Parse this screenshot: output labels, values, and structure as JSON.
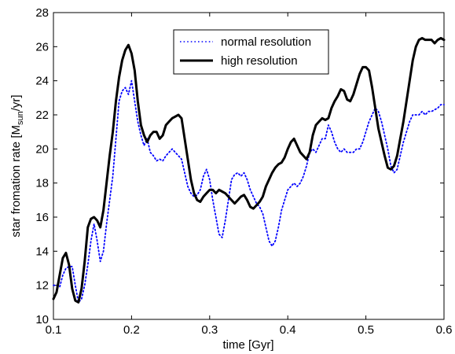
{
  "chart_data": {
    "type": "line",
    "xlabel": "time [Gyr]",
    "ylabel_parts": {
      "main": "star fromation rate [M",
      "sub": "sun",
      "tail": "/yr]"
    },
    "xlim": [
      0.1,
      0.6
    ],
    "ylim": [
      10,
      28
    ],
    "xticks": [
      "0.1",
      "0.2",
      "0.3",
      "0.4",
      "0.5",
      "0.6"
    ],
    "yticks": [
      "10",
      "12",
      "14",
      "16",
      "18",
      "20",
      "22",
      "24",
      "26",
      "28"
    ],
    "grid": false,
    "legend_position": "top-center",
    "series": [
      {
        "name": "normal resolution",
        "style": "dotted",
        "color": "#0000ff",
        "x": [
          0.1,
          0.104,
          0.108,
          0.112,
          0.116,
          0.12,
          0.124,
          0.128,
          0.132,
          0.136,
          0.14,
          0.144,
          0.148,
          0.152,
          0.156,
          0.16,
          0.164,
          0.168,
          0.172,
          0.176,
          0.18,
          0.184,
          0.188,
          0.192,
          0.196,
          0.2,
          0.204,
          0.208,
          0.212,
          0.216,
          0.22,
          0.224,
          0.228,
          0.232,
          0.236,
          0.24,
          0.244,
          0.248,
          0.252,
          0.256,
          0.26,
          0.264,
          0.268,
          0.272,
          0.276,
          0.28,
          0.284,
          0.288,
          0.292,
          0.296,
          0.3,
          0.304,
          0.308,
          0.312,
          0.316,
          0.32,
          0.324,
          0.328,
          0.332,
          0.336,
          0.34,
          0.344,
          0.348,
          0.352,
          0.356,
          0.36,
          0.364,
          0.368,
          0.372,
          0.376,
          0.38,
          0.384,
          0.388,
          0.392,
          0.396,
          0.4,
          0.404,
          0.408,
          0.412,
          0.416,
          0.42,
          0.424,
          0.428,
          0.432,
          0.436,
          0.44,
          0.444,
          0.448,
          0.452,
          0.456,
          0.46,
          0.464,
          0.468,
          0.472,
          0.476,
          0.48,
          0.484,
          0.488,
          0.492,
          0.496,
          0.5,
          0.504,
          0.508,
          0.512,
          0.516,
          0.52,
          0.524,
          0.528,
          0.532,
          0.536,
          0.54,
          0.544,
          0.548,
          0.552,
          0.556,
          0.56,
          0.564,
          0.568,
          0.572,
          0.576,
          0.58,
          0.584,
          0.588,
          0.592,
          0.596,
          0.6
        ],
        "y": [
          12.0,
          12.0,
          11.9,
          12.6,
          13.0,
          13.1,
          13.1,
          12.0,
          11.0,
          11.2,
          12.0,
          13.2,
          14.6,
          15.6,
          14.6,
          13.4,
          14.0,
          15.6,
          17.0,
          18.4,
          20.6,
          22.8,
          23.4,
          23.6,
          23.2,
          24.0,
          22.8,
          21.6,
          20.8,
          20.2,
          20.6,
          19.8,
          19.6,
          19.3,
          19.4,
          19.3,
          19.6,
          19.8,
          20.0,
          19.8,
          19.6,
          19.4,
          18.6,
          17.8,
          17.4,
          17.2,
          17.3,
          17.6,
          18.4,
          18.8,
          18.2,
          17.0,
          16.0,
          15.0,
          14.8,
          15.8,
          17.0,
          18.2,
          18.5,
          18.6,
          18.4,
          18.6,
          18.2,
          17.6,
          17.2,
          16.8,
          16.6,
          16.2,
          15.4,
          14.6,
          14.3,
          14.6,
          15.4,
          16.4,
          17.0,
          17.6,
          17.8,
          18.0,
          17.8,
          18.0,
          18.4,
          19.0,
          19.8,
          20.0,
          19.8,
          20.2,
          20.6,
          20.6,
          21.4,
          21.0,
          20.4,
          20.0,
          19.8,
          20.0,
          19.8,
          19.8,
          19.8,
          20.0,
          20.0,
          20.4,
          21.0,
          21.6,
          22.0,
          22.4,
          22.2,
          21.6,
          20.8,
          20.0,
          19.0,
          18.6,
          18.8,
          19.6,
          20.4,
          21.0,
          21.6,
          22.0,
          22.0,
          22.0,
          22.2,
          22.0,
          22.2,
          22.2,
          22.3,
          22.4,
          22.6,
          22.6
        ]
      },
      {
        "name": "high resolution",
        "style": "solid",
        "color": "#000000",
        "x": [
          0.1,
          0.104,
          0.108,
          0.112,
          0.116,
          0.12,
          0.124,
          0.128,
          0.132,
          0.136,
          0.14,
          0.144,
          0.148,
          0.152,
          0.156,
          0.16,
          0.164,
          0.168,
          0.172,
          0.176,
          0.18,
          0.184,
          0.188,
          0.192,
          0.196,
          0.2,
          0.204,
          0.208,
          0.212,
          0.216,
          0.22,
          0.224,
          0.228,
          0.232,
          0.236,
          0.24,
          0.244,
          0.248,
          0.252,
          0.256,
          0.26,
          0.264,
          0.268,
          0.272,
          0.276,
          0.28,
          0.284,
          0.288,
          0.292,
          0.296,
          0.3,
          0.304,
          0.308,
          0.312,
          0.316,
          0.32,
          0.324,
          0.328,
          0.332,
          0.336,
          0.34,
          0.344,
          0.348,
          0.352,
          0.356,
          0.36,
          0.364,
          0.368,
          0.372,
          0.376,
          0.38,
          0.384,
          0.388,
          0.392,
          0.396,
          0.4,
          0.404,
          0.408,
          0.412,
          0.416,
          0.42,
          0.424,
          0.428,
          0.432,
          0.436,
          0.44,
          0.444,
          0.448,
          0.452,
          0.456,
          0.46,
          0.464,
          0.468,
          0.472,
          0.476,
          0.48,
          0.484,
          0.488,
          0.492,
          0.496,
          0.5,
          0.504,
          0.508,
          0.512,
          0.516,
          0.52,
          0.524,
          0.528,
          0.532,
          0.536,
          0.54,
          0.544,
          0.548,
          0.552,
          0.556,
          0.56,
          0.564,
          0.568,
          0.572,
          0.576,
          0.58,
          0.584,
          0.588,
          0.592,
          0.596,
          0.6
        ],
        "y": [
          11.2,
          11.6,
          12.6,
          13.6,
          13.9,
          13.2,
          11.8,
          11.1,
          11.0,
          11.8,
          13.4,
          15.4,
          15.9,
          16.0,
          15.8,
          15.4,
          16.4,
          18.0,
          19.6,
          21.0,
          22.8,
          24.2,
          25.2,
          25.8,
          26.1,
          25.6,
          24.6,
          22.8,
          21.4,
          20.8,
          20.4,
          20.8,
          21.0,
          21.0,
          20.6,
          20.8,
          21.4,
          21.6,
          21.8,
          21.9,
          22.0,
          21.8,
          20.6,
          19.4,
          18.2,
          17.4,
          17.0,
          16.9,
          17.2,
          17.4,
          17.6,
          17.6,
          17.4,
          17.6,
          17.5,
          17.4,
          17.2,
          17.0,
          16.8,
          17.0,
          17.2,
          17.3,
          17.0,
          16.6,
          16.5,
          16.7,
          16.9,
          17.2,
          17.8,
          18.2,
          18.6,
          18.9,
          19.1,
          19.2,
          19.5,
          20.0,
          20.4,
          20.6,
          20.2,
          19.8,
          19.6,
          19.4,
          19.8,
          20.8,
          21.4,
          21.6,
          21.8,
          21.7,
          21.8,
          22.4,
          22.8,
          23.1,
          23.5,
          23.4,
          22.9,
          22.8,
          23.2,
          23.8,
          24.4,
          24.8,
          24.8,
          24.6,
          23.6,
          22.4,
          21.2,
          20.4,
          19.6,
          18.9,
          18.8,
          19.0,
          19.6,
          20.6,
          21.6,
          22.8,
          24.0,
          25.2,
          26.0,
          26.4,
          26.5,
          26.4,
          26.4,
          26.4,
          26.2,
          26.4,
          26.5,
          26.4
        ]
      }
    ]
  }
}
